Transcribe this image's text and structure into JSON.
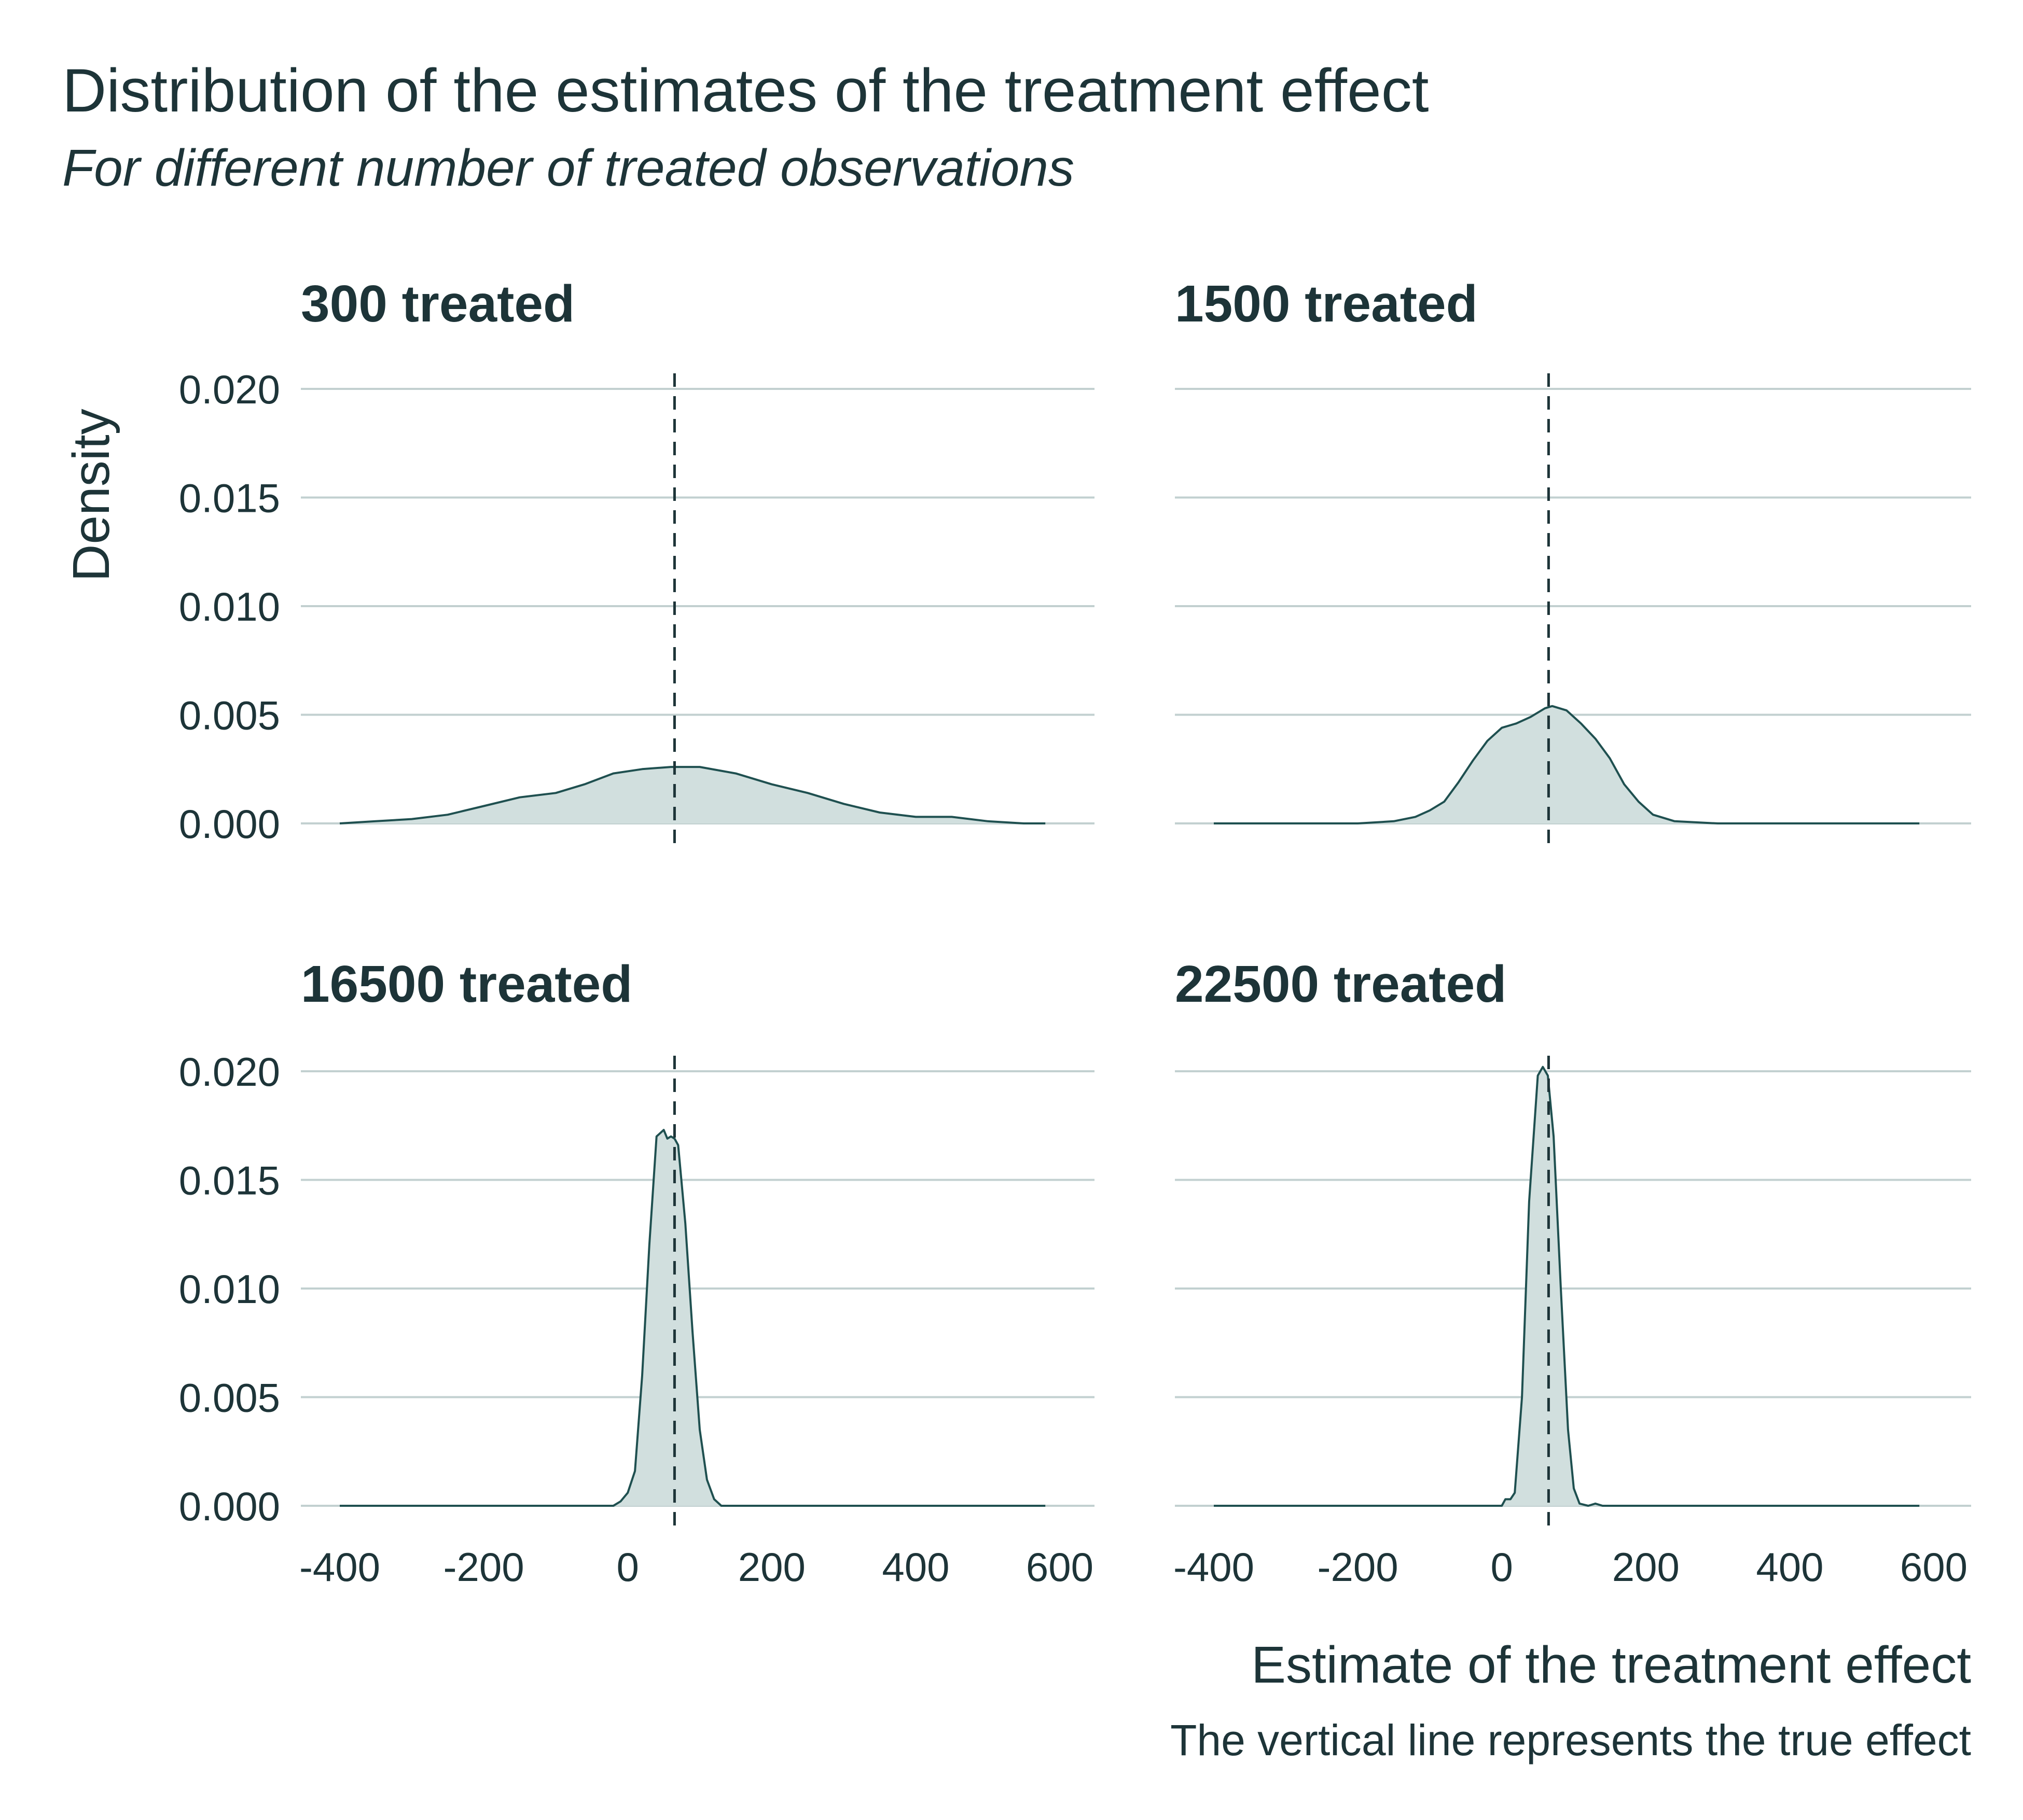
{
  "colors": {
    "text": "#1d3438",
    "grid": "#c2d0d0",
    "fill": "#d1dfde",
    "line": "#1f5050",
    "ref_line": "#1d3438"
  },
  "chart_data": {
    "type": "area",
    "title": "Distribution of the estimates of the treatment effect",
    "subtitle": "For different number of treated observations",
    "xlabel": "Estimate of the treatment effect",
    "ylabel": "Density",
    "caption": "The vertical line represents the true effect",
    "xlim": [
      -400,
      600
    ],
    "ylim": [
      0,
      0.02
    ],
    "x_ticks": [
      -400,
      -200,
      0,
      200,
      400,
      600
    ],
    "y_ticks": [
      0.0,
      0.005,
      0.01,
      0.015,
      0.02
    ],
    "x_tick_labels": [
      "-400",
      "-200",
      "0",
      "200",
      "400",
      "600"
    ],
    "y_tick_labels": [
      "0.000",
      "0.005",
      "0.010",
      "0.015",
      "0.020"
    ],
    "grid": "horizontal",
    "true_effect": 65,
    "facets": [
      {
        "title": "300 treated",
        "density": [
          [
            -400,
            0.0
          ],
          [
            -350,
            0.0001
          ],
          [
            -300,
            0.0002
          ],
          [
            -250,
            0.0004
          ],
          [
            -200,
            0.0008
          ],
          [
            -150,
            0.0012
          ],
          [
            -100,
            0.0014
          ],
          [
            -60,
            0.0018
          ],
          [
            -20,
            0.0023
          ],
          [
            20,
            0.0025
          ],
          [
            60,
            0.0026
          ],
          [
            100,
            0.0026
          ],
          [
            150,
            0.0023
          ],
          [
            200,
            0.0018
          ],
          [
            250,
            0.0014
          ],
          [
            300,
            0.0009
          ],
          [
            350,
            0.0005
          ],
          [
            400,
            0.0003
          ],
          [
            450,
            0.0003
          ],
          [
            500,
            0.0001
          ],
          [
            550,
            0.0
          ],
          [
            580,
            0.0
          ]
        ]
      },
      {
        "title": "1500 treated",
        "density": [
          [
            -400,
            0.0
          ],
          [
            -200,
            0.0
          ],
          [
            -150,
            0.0001
          ],
          [
            -120,
            0.0003
          ],
          [
            -100,
            0.0006
          ],
          [
            -80,
            0.001
          ],
          [
            -60,
            0.0019
          ],
          [
            -40,
            0.0029
          ],
          [
            -20,
            0.0038
          ],
          [
            0,
            0.0044
          ],
          [
            20,
            0.0046
          ],
          [
            40,
            0.0049
          ],
          [
            60,
            0.0053
          ],
          [
            70,
            0.0054
          ],
          [
            90,
            0.0052
          ],
          [
            110,
            0.0046
          ],
          [
            130,
            0.0039
          ],
          [
            150,
            0.003
          ],
          [
            170,
            0.0018
          ],
          [
            190,
            0.001
          ],
          [
            210,
            0.0004
          ],
          [
            240,
            0.0001
          ],
          [
            300,
            0.0
          ],
          [
            580,
            0.0
          ]
        ]
      },
      {
        "title": "16500 treated",
        "density": [
          [
            -400,
            0.0
          ],
          [
            -20,
            0.0
          ],
          [
            -10,
            0.0002
          ],
          [
            0,
            0.0006
          ],
          [
            10,
            0.0016
          ],
          [
            20,
            0.006
          ],
          [
            30,
            0.012
          ],
          [
            40,
            0.017
          ],
          [
            50,
            0.0173
          ],
          [
            55,
            0.0169
          ],
          [
            60,
            0.017
          ],
          [
            65,
            0.0169
          ],
          [
            70,
            0.0166
          ],
          [
            80,
            0.013
          ],
          [
            90,
            0.008
          ],
          [
            100,
            0.0035
          ],
          [
            110,
            0.0012
          ],
          [
            120,
            0.0003
          ],
          [
            130,
            0.0
          ],
          [
            580,
            0.0
          ]
        ]
      },
      {
        "title": "22500 treated",
        "density": [
          [
            -400,
            0.0
          ],
          [
            0,
            0.0
          ],
          [
            5,
            0.0003
          ],
          [
            12,
            0.0003
          ],
          [
            18,
            0.0006
          ],
          [
            28,
            0.005
          ],
          [
            38,
            0.014
          ],
          [
            50,
            0.0198
          ],
          [
            57,
            0.0202
          ],
          [
            64,
            0.0198
          ],
          [
            72,
            0.017
          ],
          [
            82,
            0.01
          ],
          [
            92,
            0.0035
          ],
          [
            100,
            0.0008
          ],
          [
            108,
            0.0001
          ],
          [
            120,
            0.0
          ],
          [
            130,
            0.0001
          ],
          [
            140,
            0.0
          ],
          [
            580,
            0.0
          ]
        ]
      }
    ]
  }
}
